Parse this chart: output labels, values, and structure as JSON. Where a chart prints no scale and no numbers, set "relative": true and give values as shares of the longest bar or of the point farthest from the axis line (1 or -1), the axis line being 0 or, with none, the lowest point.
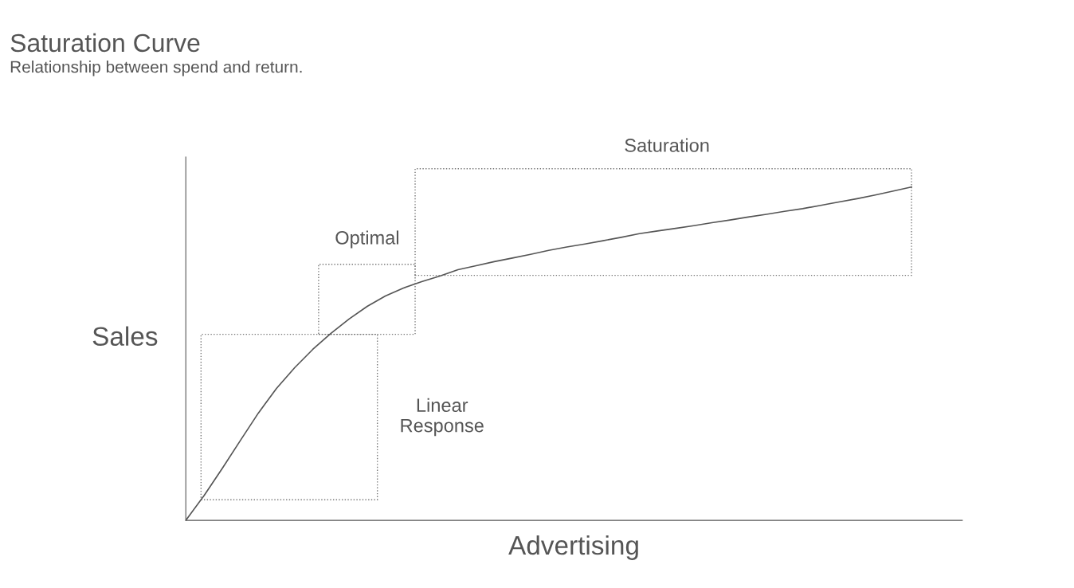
{
  "chart_data": {
    "type": "line",
    "title": "Saturation Curve",
    "subtitle": "Relationship between spend and return.",
    "xlabel": "Advertising",
    "ylabel": "Sales",
    "relative": true,
    "categories": [
      null,
      null,
      null,
      null,
      null,
      null,
      null,
      null,
      null,
      null,
      null,
      null,
      null,
      null,
      null,
      null,
      null,
      null,
      null,
      null,
      null,
      null,
      null,
      null,
      null,
      null,
      null,
      null,
      null,
      null,
      null,
      null,
      null,
      null,
      null,
      null,
      null,
      null,
      null,
      null,
      null
    ],
    "series": [
      {
        "color": "#555555",
        "values": [
          0,
          0.074,
          0.155,
          0.239,
          0.322,
          0.396,
          0.458,
          0.513,
          0.561,
          0.604,
          0.642,
          0.673,
          0.697,
          0.716,
          0.733,
          0.752,
          0.764,
          0.776,
          0.787,
          0.798,
          0.81,
          0.82,
          0.829,
          0.839,
          0.849,
          0.86,
          0.868,
          0.876,
          0.884,
          0.893,
          0.901,
          0.91,
          0.918,
          0.927,
          0.935,
          0.945,
          0.955,
          0.965,
          0.976,
          0.988,
          1
        ]
      }
    ],
    "annotations": [
      "Linear\nResponse",
      "Optimal",
      "Saturation"
    ],
    "grid": false,
    "legend": false,
    "marker": "none",
    "line_style": "solid"
  }
}
